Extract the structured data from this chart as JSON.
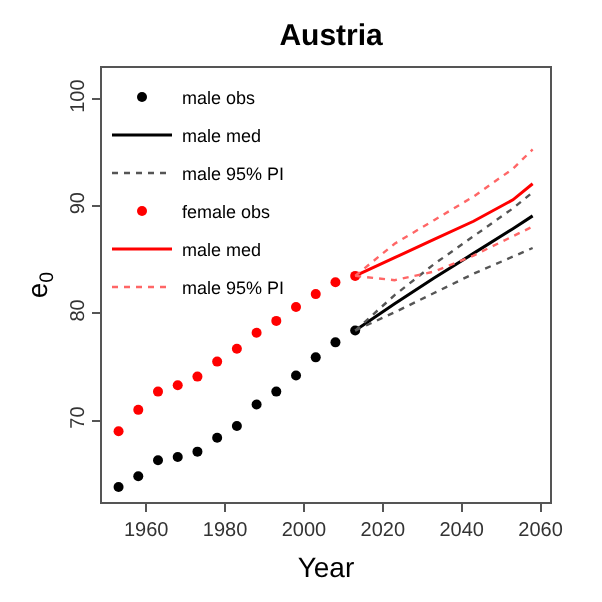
{
  "chart_data": {
    "type": "line",
    "title": "Austria",
    "xlabel": "Year",
    "ylabel": "e$_{0}$",
    "xlim": [
      1948.8,
      2062.4
    ],
    "ylim": [
      62.4,
      102.9
    ],
    "xticks": [
      1960,
      1980,
      2000,
      2020,
      2040,
      2060
    ],
    "yticks": [
      70,
      80,
      90,
      100
    ],
    "legend": "top left",
    "series": [
      {
        "name": "male obs",
        "type": "scatter",
        "marker": "circle",
        "color": "#000000",
        "x": [
          1953,
          1958,
          1963,
          1968,
          1973,
          1978,
          1983,
          1988,
          1993,
          1998,
          2003,
          2008,
          2013
        ],
        "values": [
          63.8,
          64.8,
          66.3,
          66.6,
          67.1,
          68.4,
          69.5,
          71.5,
          72.7,
          74.2,
          75.9,
          77.3,
          78.4
        ]
      },
      {
        "name": "male med",
        "line_style": "solid",
        "color": "#000000",
        "x": [
          2013,
          2023,
          2033,
          2043,
          2053,
          2058
        ],
        "values": [
          78.4,
          80.9,
          83.3,
          85.6,
          87.9,
          89.1
        ]
      },
      {
        "name": "male 95% PI",
        "line_style": "dotted",
        "color": "#555555",
        "x": [
          2013,
          2023,
          2033,
          2043,
          2053,
          2058
        ],
        "values": [
          78.4,
          81.7,
          84.6,
          87.2,
          89.8,
          91.3
        ]
      },
      {
        "line_style": "dotted",
        "color": "#555555",
        "x": [
          2013,
          2023,
          2033,
          2043,
          2053,
          2058
        ],
        "values": [
          78.4,
          80.1,
          81.9,
          83.7,
          85.3,
          86.1
        ]
      },
      {
        "name": "female obs",
        "type": "scatter",
        "marker": "circle",
        "color": "#ff0000",
        "x": [
          1953,
          1958,
          1963,
          1968,
          1973,
          1978,
          1983,
          1988,
          1993,
          1998,
          2003,
          2008,
          2013
        ],
        "values": [
          69.0,
          71.0,
          72.7,
          73.3,
          74.1,
          75.5,
          76.7,
          78.2,
          79.3,
          80.6,
          81.8,
          82.9,
          83.5
        ]
      },
      {
        "name": "male med",
        "line_style": "solid",
        "color": "#ff0000",
        "x": [
          2013,
          2023,
          2033,
          2043,
          2053,
          2058
        ],
        "values": [
          83.5,
          85.2,
          86.9,
          88.6,
          90.6,
          92.1
        ]
      },
      {
        "name": "male 95% PI",
        "line_style": "dotted",
        "color": "#ff6666",
        "x": [
          2013,
          2023,
          2033,
          2043,
          2053,
          2058
        ],
        "values": [
          83.5,
          86.5,
          88.7,
          90.9,
          93.5,
          95.3
        ]
      },
      {
        "line_style": "dotted",
        "color": "#ff6666",
        "x": [
          2013,
          2023,
          2033,
          2043,
          2053,
          2058
        ],
        "values": [
          83.5,
          83.1,
          83.9,
          85.4,
          87.2,
          88.1
        ]
      }
    ]
  }
}
